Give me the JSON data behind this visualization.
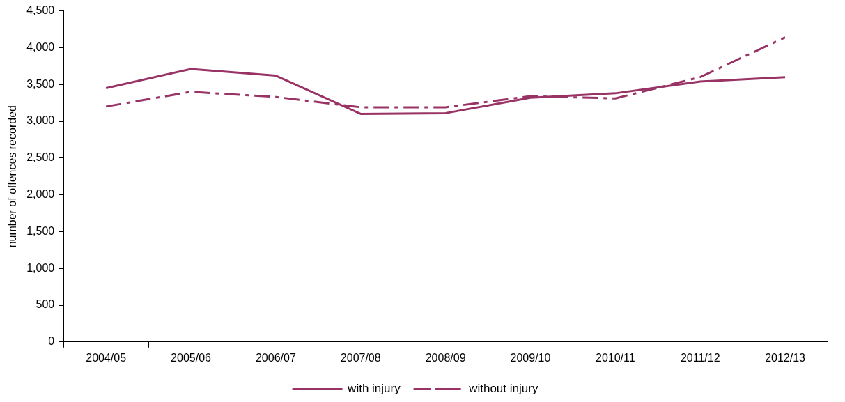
{
  "chart_data": {
    "type": "line",
    "ylabel": "number of offences recorded",
    "categories": [
      "2004/05",
      "2005/06",
      "2006/07",
      "2007/08",
      "2008/09",
      "2009/10",
      "2010/11",
      "2011/12",
      "2012/13"
    ],
    "series": [
      {
        "name": "with injury",
        "color": "#993366",
        "line_style": "solid",
        "values": [
          3450,
          3710,
          3620,
          3100,
          3110,
          3320,
          3380,
          3540,
          3600
        ]
      },
      {
        "name": "without injury",
        "color": "#993366",
        "line_style": "dashdot",
        "values": [
          3200,
          3400,
          3330,
          3190,
          3190,
          3340,
          3310,
          3600,
          4140
        ]
      }
    ],
    "ylim": [
      0,
      4500
    ],
    "yticks": [
      0,
      500,
      {
        "value": 1000,
        "label": "1,000"
      },
      {
        "value": 1500,
        "label": "1,500"
      },
      {
        "value": 2000,
        "label": "2,000"
      },
      {
        "value": 2500,
        "label": "2,500"
      },
      {
        "value": 3000,
        "label": "3,000"
      },
      {
        "value": 3500,
        "label": "3,500"
      },
      {
        "value": 4000,
        "label": "4,000"
      },
      {
        "value": 4500,
        "label": "4,500"
      }
    ],
    "grid": false,
    "legend": "bottom",
    "marker": "none"
  }
}
